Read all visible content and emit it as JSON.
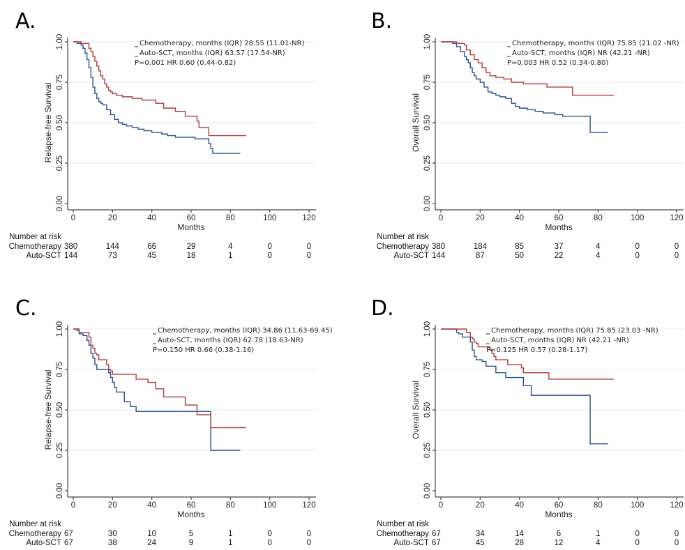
{
  "colors": {
    "chemotherapy": "#2b4f8f",
    "auto_sct": "#b03a3e"
  },
  "chart_data": [
    {
      "type": "line",
      "panel": "A.",
      "title": "",
      "xlabel": "Months",
      "ylabel": "Relapse-free Survival",
      "xlim": [
        0,
        120
      ],
      "ylim": [
        0,
        1
      ],
      "xticks": [
        "0",
        "20",
        "40",
        "60",
        "80",
        "100",
        "120"
      ],
      "yticks": [
        "0.00",
        "0.25",
        "0.50",
        "0.75",
        "1.00"
      ],
      "grid": true,
      "legend_position": "top-right",
      "legend": [
        "Chemotherapy, months (IQR) 28.55 (11.01-NR)",
        "Auto-SCT, months (IQR) 63.57 (17.54-NR)"
      ],
      "annotation": "P=0.001 HR 0.60 (0.44-0.82)",
      "series": [
        {
          "name": "Chemotherapy",
          "color_key": "chemotherapy",
          "x": [
            0,
            2,
            4,
            5,
            6,
            7,
            8,
            9,
            10,
            11,
            12,
            13,
            14,
            15,
            17,
            19,
            21,
            23,
            25,
            27,
            30,
            33,
            36,
            40,
            45,
            48,
            52,
            57,
            62,
            66,
            69,
            70,
            71,
            85
          ],
          "y": [
            1.0,
            0.99,
            0.98,
            0.96,
            0.93,
            0.89,
            0.84,
            0.78,
            0.72,
            0.68,
            0.65,
            0.63,
            0.62,
            0.61,
            0.58,
            0.55,
            0.52,
            0.5,
            0.49,
            0.48,
            0.47,
            0.46,
            0.45,
            0.44,
            0.43,
            0.42,
            0.41,
            0.41,
            0.4,
            0.4,
            0.37,
            0.34,
            0.31,
            0.31
          ]
        },
        {
          "name": "Auto-SCT",
          "color_key": "auto_sct",
          "x": [
            0,
            4,
            8,
            9,
            10,
            11,
            12,
            13,
            14,
            15,
            16,
            17,
            18,
            19,
            20,
            22,
            25,
            30,
            35,
            42,
            46,
            52,
            57,
            63,
            64,
            69,
            88
          ],
          "y": [
            1.0,
            0.99,
            0.96,
            0.94,
            0.91,
            0.88,
            0.85,
            0.82,
            0.79,
            0.77,
            0.74,
            0.72,
            0.7,
            0.69,
            0.68,
            0.67,
            0.66,
            0.65,
            0.64,
            0.62,
            0.59,
            0.57,
            0.54,
            0.51,
            0.47,
            0.42,
            0.42
          ]
        }
      ],
      "risk_table": {
        "title": "Number at risk",
        "times": [
          0,
          20,
          40,
          60,
          80,
          100,
          120
        ],
        "rows": [
          {
            "label": "Chemotherapy",
            "values": [
              "380",
              "144",
              "66",
              "29",
              "4",
              "0",
              "0"
            ]
          },
          {
            "label": "Auto-SCT",
            "values": [
              "144",
              "73",
              "45",
              "18",
              "1",
              "0",
              "0"
            ]
          }
        ]
      }
    },
    {
      "type": "line",
      "panel": "B.",
      "title": "",
      "xlabel": "Months",
      "ylabel": "Overall Survival",
      "xlim": [
        0,
        120
      ],
      "ylim": [
        0,
        1
      ],
      "xticks": [
        "0",
        "20",
        "40",
        "60",
        "80",
        "100",
        "120"
      ],
      "yticks": [
        "0.00",
        "0.25",
        "0.50",
        "0.75",
        "1.00"
      ],
      "grid": true,
      "legend_position": "top-right",
      "legend": [
        "Chemotherapy, months (IQR) 75.85 (21.02 -NR)",
        "Auto-SCT, months (IQR) NR (42.21 -NR)"
      ],
      "annotation": "P=0.003 HR 0.52 (0.34-0.80)",
      "series": [
        {
          "name": "Chemotherapy",
          "color_key": "chemotherapy",
          "x": [
            0,
            6,
            8,
            10,
            12,
            13,
            14,
            15,
            16,
            17,
            18,
            20,
            22,
            24,
            26,
            28,
            30,
            33,
            36,
            38,
            40,
            44,
            48,
            52,
            58,
            62,
            76,
            85
          ],
          "y": [
            1.0,
            0.99,
            0.97,
            0.94,
            0.91,
            0.89,
            0.87,
            0.84,
            0.81,
            0.79,
            0.77,
            0.75,
            0.72,
            0.69,
            0.68,
            0.67,
            0.66,
            0.65,
            0.62,
            0.6,
            0.59,
            0.58,
            0.57,
            0.56,
            0.55,
            0.54,
            0.44,
            0.44
          ]
        },
        {
          "name": "Auto-SCT",
          "color_key": "auto_sct",
          "x": [
            0,
            8,
            12,
            13,
            15,
            17,
            19,
            21,
            23,
            25,
            28,
            32,
            36,
            42,
            54,
            67,
            88
          ],
          "y": [
            1.0,
            0.99,
            0.98,
            0.95,
            0.92,
            0.89,
            0.87,
            0.84,
            0.81,
            0.79,
            0.78,
            0.77,
            0.75,
            0.74,
            0.72,
            0.67,
            0.67
          ]
        }
      ],
      "risk_table": {
        "title": "Number at risk",
        "times": [
          0,
          20,
          40,
          60,
          80,
          100,
          120
        ],
        "rows": [
          {
            "label": "Chemotherapy",
            "values": [
              "380",
              "184",
              "85",
              "37",
              "4",
              "0",
              "0"
            ]
          },
          {
            "label": "Auto-SCT",
            "values": [
              "144",
              "87",
              "50",
              "22",
              "4",
              "0",
              "0"
            ]
          }
        ]
      }
    },
    {
      "type": "line",
      "panel": "C.",
      "title": "",
      "xlabel": "Months",
      "ylabel": "Relapse-free Survival",
      "xlim": [
        0,
        120
      ],
      "ylim": [
        0,
        1
      ],
      "xticks": [
        "0",
        "20",
        "40",
        "60",
        "80",
        "100",
        "120"
      ],
      "yticks": [
        "0.00",
        "0.25",
        "0.50",
        "0.75",
        "1.00"
      ],
      "grid": true,
      "legend_position": "top-right",
      "legend": [
        "Chemotherapy, months (IQR) 34.86 (11.63-69.45)",
        "Auto-SCT, months (IQR) 62.78 (18.63-NR)"
      ],
      "annotation": "P=0.150 HR 0.66 (0.38-1.16)",
      "series": [
        {
          "name": "Chemotherapy",
          "color_key": "chemotherapy",
          "x": [
            0,
            2,
            3,
            5,
            7,
            8,
            9,
            10,
            11,
            12,
            18,
            19,
            20,
            21,
            22,
            26,
            29,
            32,
            35,
            69,
            70,
            85
          ],
          "y": [
            1.0,
            0.99,
            0.97,
            0.96,
            0.93,
            0.9,
            0.85,
            0.82,
            0.78,
            0.75,
            0.73,
            0.7,
            0.67,
            0.64,
            0.61,
            0.55,
            0.52,
            0.49,
            0.49,
            0.49,
            0.25,
            0.25
          ]
        },
        {
          "name": "Auto-SCT",
          "color_key": "auto_sct",
          "x": [
            0,
            3,
            8,
            9,
            10,
            11,
            12,
            13,
            14,
            17,
            18,
            19,
            20,
            21,
            32,
            38,
            42,
            46,
            57,
            63,
            69,
            70,
            88
          ],
          "y": [
            1.0,
            0.98,
            0.95,
            0.9,
            0.88,
            0.85,
            0.84,
            0.81,
            0.81,
            0.78,
            0.75,
            0.74,
            0.72,
            0.72,
            0.69,
            0.67,
            0.63,
            0.58,
            0.53,
            0.47,
            0.47,
            0.39,
            0.39
          ]
        }
      ],
      "risk_table": {
        "title": "Number at risk",
        "times": [
          0,
          20,
          40,
          60,
          80,
          100,
          120
        ],
        "rows": [
          {
            "label": "Chemotherapy",
            "values": [
              "67",
              "30",
              "10",
              "5",
              "1",
              "0",
              "0"
            ]
          },
          {
            "label": "Auto-SCT",
            "values": [
              "67",
              "38",
              "24",
              "9",
              "1",
              "0",
              "0"
            ]
          }
        ]
      }
    },
    {
      "type": "line",
      "panel": "D.",
      "title": "",
      "xlabel": "Months",
      "ylabel": "Overall Survival",
      "xlim": [
        0,
        120
      ],
      "ylim": [
        0,
        1
      ],
      "xticks": [
        "0",
        "20",
        "40",
        "60",
        "80",
        "100",
        "120"
      ],
      "yticks": [
        "0.00",
        "0.25",
        "0.50",
        "0.75",
        "1.00"
      ],
      "grid": true,
      "legend_position": "top-right",
      "legend": [
        "Chemotherapy, months (IQR) 75.85 (23.03 -NR)",
        "Auto-SCT, months (IQR) NR (42.21 -NR)"
      ],
      "annotation": "P=0.125 HR 0.57 (0.28-1.17)",
      "series": [
        {
          "name": "Chemotherapy",
          "color_key": "chemotherapy",
          "x": [
            0,
            8,
            9,
            11,
            15,
            16,
            17,
            18,
            21,
            23,
            28,
            33,
            42,
            46,
            76,
            85
          ],
          "y": [
            1.0,
            0.98,
            0.97,
            0.95,
            0.92,
            0.87,
            0.83,
            0.81,
            0.8,
            0.77,
            0.73,
            0.7,
            0.65,
            0.59,
            0.29,
            0.29
          ]
        },
        {
          "name": "Auto-SCT",
          "color_key": "auto_sct",
          "x": [
            0,
            13,
            15,
            16,
            17,
            18,
            19,
            21,
            24,
            25,
            26,
            27,
            28,
            34,
            41,
            42,
            43,
            55,
            88
          ],
          "y": [
            1.0,
            0.98,
            0.95,
            0.94,
            0.92,
            0.91,
            0.89,
            0.89,
            0.89,
            0.87,
            0.85,
            0.83,
            0.81,
            0.78,
            0.76,
            0.73,
            0.73,
            0.69,
            0.69
          ]
        }
      ],
      "risk_table": {
        "title": "Number at risk",
        "times": [
          0,
          20,
          40,
          60,
          80,
          100,
          120
        ],
        "rows": [
          {
            "label": "Chemotherapy",
            "values": [
              "67",
              "34",
              "14",
              "6",
              "1",
              "0",
              "0"
            ]
          },
          {
            "label": "Auto-SCT",
            "values": [
              "67",
              "45",
              "28",
              "12",
              "4",
              "0",
              "0"
            ]
          }
        ]
      }
    }
  ]
}
